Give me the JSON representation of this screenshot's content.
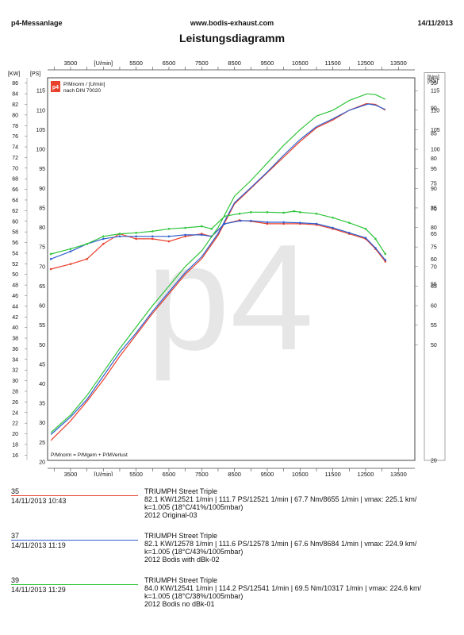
{
  "header": {
    "left": "p4-Messanlage",
    "center": "www.bodis-exhaust.com",
    "right": "14/11/2013"
  },
  "title": "Leistungsdiagramm",
  "watermark": "p4",
  "chart_data": {
    "type": "line",
    "x_axis": {
      "unit_label": "[U/min]",
      "range": [
        2800,
        14000
      ],
      "ticks": [
        3500,
        5500,
        6500,
        7500,
        8500,
        9500,
        10500,
        11500,
        12500,
        13500
      ],
      "tick_labels": [
        "3500",
        "[U/min]",
        "5500",
        "6500",
        "7500",
        "8500",
        "9500",
        "10500",
        "11500",
        "12500",
        "13500"
      ]
    },
    "left_axis_kw": {
      "label": "[KW]",
      "range": [
        15,
        87
      ],
      "ticks": [
        16,
        18,
        20,
        22,
        24,
        26,
        28,
        30,
        32,
        34,
        36,
        38,
        40,
        42,
        44,
        46,
        48,
        50,
        52,
        54,
        56,
        58,
        60,
        62,
        64,
        66,
        68,
        70,
        72,
        74,
        76,
        78,
        80,
        82,
        84,
        86
      ]
    },
    "left_axis_ps": {
      "label": "[PS]",
      "range": [
        20.4,
        118.3
      ],
      "ticks": [
        20,
        25,
        30,
        35,
        40,
        45,
        50,
        55,
        60,
        65,
        70,
        75,
        80,
        85,
        90,
        95,
        100,
        105,
        110,
        115
      ]
    },
    "right_axis_ps": {
      "label": "[PS]",
      "ticks": [
        50,
        55,
        60,
        65,
        70,
        75,
        80,
        85,
        90,
        95,
        100,
        105,
        110,
        115
      ]
    },
    "right_axis_nm": {
      "label": "[Nm]",
      "range": [
        20,
        96
      ],
      "ticks": [
        20,
        55,
        60,
        65,
        70,
        75,
        80,
        85,
        90,
        95
      ]
    },
    "legend_box": {
      "logo_text": "p4",
      "line1": "P/Mnorm / [U/min]",
      "line2": "nach DIN 70020"
    },
    "bottom_formula": "P/Mnorm = P/Mgem + P/MVerlust",
    "series": [
      {
        "run": "35",
        "color": "#e8412c",
        "power_ps": [
          [
            2900,
            25.5
          ],
          [
            3500,
            30.5
          ],
          [
            4000,
            35.5
          ],
          [
            4500,
            41
          ],
          [
            5000,
            47
          ],
          [
            5500,
            52.5
          ],
          [
            6000,
            58
          ],
          [
            6500,
            63
          ],
          [
            7000,
            68
          ],
          [
            7500,
            72
          ],
          [
            8000,
            78
          ],
          [
            8500,
            86
          ],
          [
            9000,
            90
          ],
          [
            9500,
            94
          ],
          [
            10000,
            98
          ],
          [
            10500,
            102
          ],
          [
            11000,
            105.5
          ],
          [
            11500,
            107.5
          ],
          [
            12000,
            110
          ],
          [
            12521,
            111.7
          ],
          [
            12800,
            111.5
          ],
          [
            13100,
            110
          ]
        ],
        "torque_nm": [
          [
            2900,
            58
          ],
          [
            3500,
            59
          ],
          [
            4000,
            60
          ],
          [
            4500,
            63
          ],
          [
            5000,
            65
          ],
          [
            5500,
            64
          ],
          [
            6000,
            64
          ],
          [
            6500,
            63.5
          ],
          [
            7000,
            64.5
          ],
          [
            7500,
            65
          ],
          [
            7800,
            64.5
          ],
          [
            8200,
            67
          ],
          [
            8655,
            67.7
          ],
          [
            9000,
            67.5
          ],
          [
            9500,
            67
          ],
          [
            10000,
            67
          ],
          [
            10500,
            67
          ],
          [
            11000,
            66.8
          ],
          [
            11500,
            66
          ],
          [
            12000,
            65
          ],
          [
            12500,
            64
          ],
          [
            12800,
            62
          ],
          [
            13100,
            59.5
          ]
        ]
      },
      {
        "run": "37",
        "color": "#2f5fd0",
        "power_ps": [
          [
            2900,
            27
          ],
          [
            3500,
            31.5
          ],
          [
            4000,
            36
          ],
          [
            4500,
            42
          ],
          [
            5000,
            48
          ],
          [
            5500,
            53
          ],
          [
            6000,
            58.5
          ],
          [
            6500,
            63.5
          ],
          [
            7000,
            68.5
          ],
          [
            7500,
            72.5
          ],
          [
            8000,
            78.5
          ],
          [
            8500,
            86.3
          ],
          [
            9000,
            90.2
          ],
          [
            9500,
            94.2
          ],
          [
            10000,
            98.5
          ],
          [
            10500,
            102.5
          ],
          [
            11000,
            105.8
          ],
          [
            11500,
            107.8
          ],
          [
            12000,
            110
          ],
          [
            12578,
            111.6
          ],
          [
            12800,
            111.3
          ],
          [
            13100,
            110.2
          ]
        ],
        "torque_nm": [
          [
            2900,
            60
          ],
          [
            3500,
            61.5
          ],
          [
            4000,
            63
          ],
          [
            4500,
            64
          ],
          [
            5000,
            64.5
          ],
          [
            5500,
            64.5
          ],
          [
            6000,
            64.5
          ],
          [
            6500,
            64.5
          ],
          [
            7000,
            64.8
          ],
          [
            7500,
            64.8
          ],
          [
            7800,
            64.5
          ],
          [
            8200,
            67
          ],
          [
            8684,
            67.6
          ],
          [
            9000,
            67.6
          ],
          [
            9500,
            67.3
          ],
          [
            10000,
            67.3
          ],
          [
            10500,
            67.2
          ],
          [
            11000,
            67
          ],
          [
            11500,
            66.2
          ],
          [
            12000,
            65.2
          ],
          [
            12500,
            64.2
          ],
          [
            12800,
            62.2
          ],
          [
            13100,
            59.8
          ]
        ]
      },
      {
        "run": "39",
        "color": "#2fc43a",
        "power_ps": [
          [
            2900,
            27.5
          ],
          [
            3500,
            32
          ],
          [
            4000,
            37
          ],
          [
            4500,
            43
          ],
          [
            5000,
            49
          ],
          [
            5500,
            54.5
          ],
          [
            6000,
            60
          ],
          [
            6500,
            65
          ],
          [
            7000,
            70
          ],
          [
            7500,
            74
          ],
          [
            8000,
            80
          ],
          [
            8500,
            88
          ],
          [
            9000,
            92
          ],
          [
            9500,
            96.5
          ],
          [
            10000,
            101
          ],
          [
            10500,
            105
          ],
          [
            11000,
            108.5
          ],
          [
            11500,
            110
          ],
          [
            12000,
            112.5
          ],
          [
            12541,
            114.2
          ],
          [
            12800,
            114
          ],
          [
            13100,
            112.8
          ]
        ],
        "torque_nm": [
          [
            2900,
            61
          ],
          [
            3500,
            62
          ],
          [
            4000,
            63
          ],
          [
            4500,
            64.5
          ],
          [
            5000,
            65
          ],
          [
            5500,
            65.2
          ],
          [
            6000,
            65.5
          ],
          [
            6500,
            66
          ],
          [
            7000,
            66.2
          ],
          [
            7500,
            66.5
          ],
          [
            7800,
            66
          ],
          [
            8200,
            68.5
          ],
          [
            8655,
            69
          ],
          [
            9000,
            69.3
          ],
          [
            9500,
            69.3
          ],
          [
            10000,
            69.2
          ],
          [
            10317,
            69.5
          ],
          [
            10500,
            69.3
          ],
          [
            11000,
            69
          ],
          [
            11500,
            68.2
          ],
          [
            12000,
            67.2
          ],
          [
            12500,
            66
          ],
          [
            12800,
            64
          ],
          [
            13100,
            61
          ]
        ]
      }
    ]
  },
  "runs": [
    {
      "number": "35",
      "date": "14/11/2013  10:43",
      "color": "#e8412c",
      "model": "TRIUMPH Street Triple",
      "stats": "82.1 KW/12521 1/min  |  111.7 PS/12521 1/min  |  67.7 Nm/8655 1/min  |  vmax: 225.1 km/",
      "conditions": "k=1.005 (18°C/41%/1005mbar)",
      "config": "2012 Original-03"
    },
    {
      "number": "37",
      "date": "14/11/2013  11:19",
      "color": "#2f5fd0",
      "model": "TRIUMPH Street Triple",
      "stats": "82.1 KW/12578 1/min  |  111.6 PS/12578 1/min  |  67.6 Nm/8684 1/min  |  vmax: 224.9 km/",
      "conditions": "k=1.005 (18°C/43%/1005mbar)",
      "config": "2012 Bodis with dBk-02"
    },
    {
      "number": "39",
      "date": "14/11/2013  11:29",
      "color": "#2fc43a",
      "model": "TRIUMPH Street Triple",
      "stats": "84.0 KW/12541 1/min  |  114.2 PS/12541 1/min  |  69.5 Nm/10317 1/min  |  vmax: 224.6 km/",
      "conditions": "k=1.005 (18°C/38%/1005mbar)",
      "config": "2012 Bodis no dBk-01"
    }
  ]
}
